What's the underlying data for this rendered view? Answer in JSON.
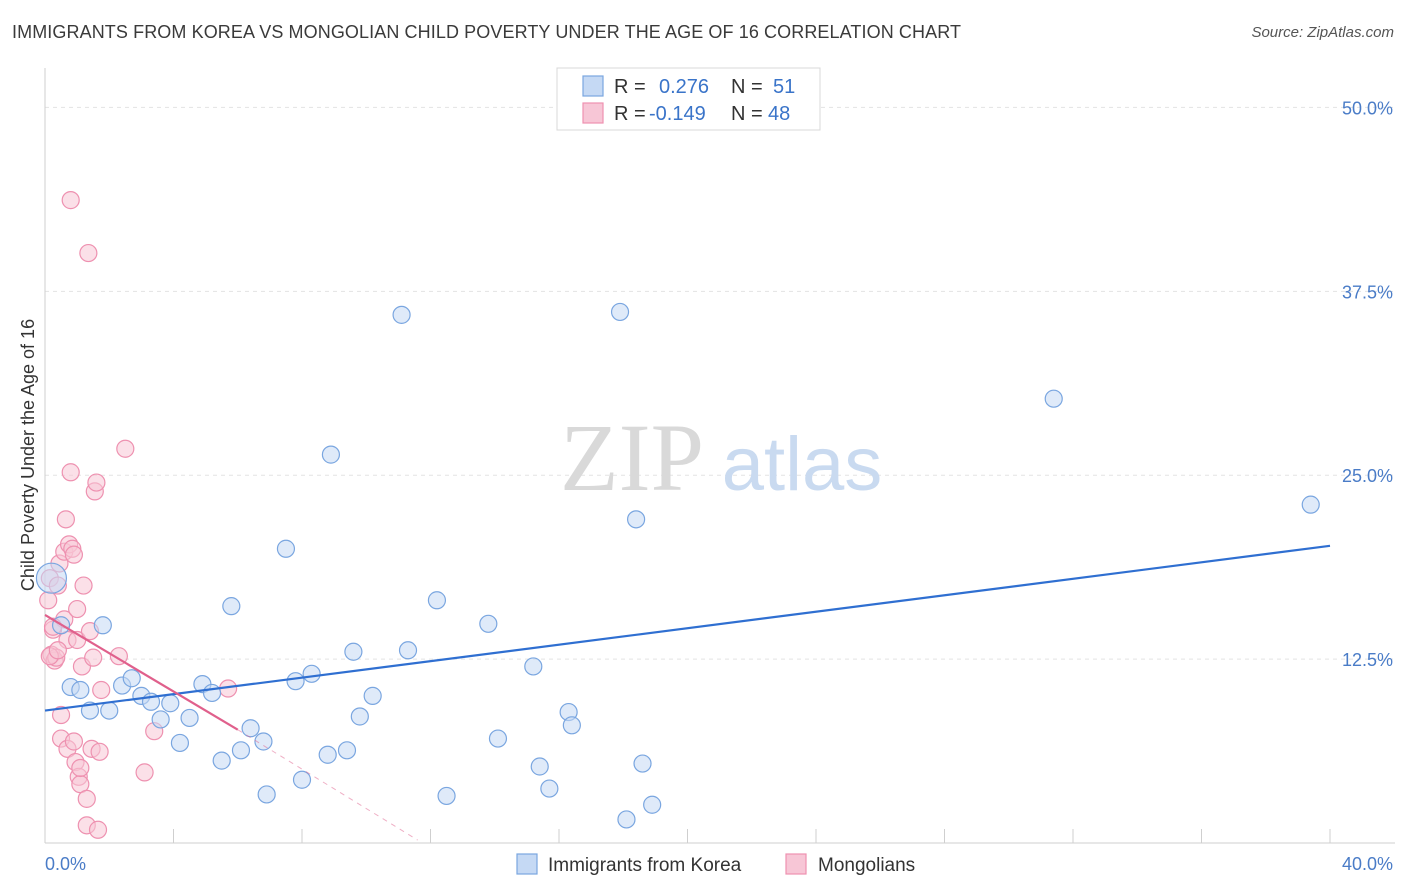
{
  "title": "IMMIGRANTS FROM KOREA VS MONGOLIAN CHILD POVERTY UNDER THE AGE OF 16 CORRELATION CHART",
  "source": "Source: ZipAtlas.com",
  "watermark": {
    "zip": "ZIP",
    "atlas": "atlas"
  },
  "chart_data": {
    "type": "scatter",
    "title": "IMMIGRANTS FROM KOREA VS MONGOLIAN CHILD POVERTY UNDER THE AGE OF 16 CORRELATION CHART",
    "xlabel": "",
    "ylabel": "Child Poverty Under the Age of 16",
    "xlim": [
      0,
      40
    ],
    "ylim": [
      0,
      52
    ],
    "x_tick_labels": {
      "min": "0.0%",
      "max": "40.0%"
    },
    "y_ticks": [
      {
        "value": 12.5,
        "label": "12.5%"
      },
      {
        "value": 25.0,
        "label": "25.0%"
      },
      {
        "value": 37.5,
        "label": "37.5%"
      },
      {
        "value": 50.0,
        "label": "50.0%"
      }
    ],
    "legend": [
      {
        "r_label": "R =",
        "r_value": "0.276",
        "n_label": "N =",
        "n_value": "51"
      },
      {
        "r_label": "R =",
        "r_value": "-0.149",
        "n_label": "N =",
        "n_value": "48"
      }
    ],
    "series": [
      {
        "name": "Immigrants from Korea",
        "color": "#7aa6e0",
        "fill": "#c5d9f4",
        "line_color": "#2f6fd1",
        "trend": {
          "x0": 0.0,
          "y0": 9.0,
          "x1": 40.0,
          "y1": 20.2
        },
        "points": [
          [
            0.2,
            18.0
          ],
          [
            0.5,
            14.8
          ],
          [
            0.8,
            10.6
          ],
          [
            1.1,
            10.4
          ],
          [
            1.4,
            9.0
          ],
          [
            1.8,
            14.8
          ],
          [
            2.0,
            9.0
          ],
          [
            2.4,
            10.7
          ],
          [
            2.7,
            11.2
          ],
          [
            3.0,
            10.0
          ],
          [
            3.3,
            9.6
          ],
          [
            3.6,
            8.4
          ],
          [
            3.9,
            9.5
          ],
          [
            4.2,
            6.8
          ],
          [
            4.5,
            8.5
          ],
          [
            4.9,
            10.8
          ],
          [
            5.2,
            10.2
          ],
          [
            5.5,
            5.6
          ],
          [
            5.8,
            16.1
          ],
          [
            6.1,
            6.3
          ],
          [
            6.4,
            7.8
          ],
          [
            6.8,
            6.9
          ],
          [
            6.9,
            3.3
          ],
          [
            7.5,
            20.0
          ],
          [
            7.8,
            11.0
          ],
          [
            8.0,
            4.3
          ],
          [
            8.3,
            11.5
          ],
          [
            8.8,
            6.0
          ],
          [
            8.9,
            26.4
          ],
          [
            9.4,
            6.3
          ],
          [
            9.6,
            13.0
          ],
          [
            9.8,
            8.6
          ],
          [
            10.2,
            10.0
          ],
          [
            11.1,
            35.9
          ],
          [
            11.3,
            13.1
          ],
          [
            12.2,
            16.5
          ],
          [
            12.5,
            3.2
          ],
          [
            13.8,
            14.9
          ],
          [
            14.1,
            7.1
          ],
          [
            15.2,
            12.0
          ],
          [
            15.4,
            5.2
          ],
          [
            15.7,
            3.7
          ],
          [
            16.3,
            8.9
          ],
          [
            16.4,
            8.0
          ],
          [
            17.9,
            36.1
          ],
          [
            18.1,
            1.6
          ],
          [
            18.4,
            22.0
          ],
          [
            18.6,
            5.4
          ],
          [
            18.9,
            2.6
          ],
          [
            31.4,
            30.2
          ],
          [
            39.4,
            23.0
          ]
        ]
      },
      {
        "name": "Mongolians",
        "color": "#ee91b0",
        "fill": "#f7c6d6",
        "line_color": "#e0608c",
        "trend": {
          "x0": 0.0,
          "y0": 15.5,
          "x1": 6.0,
          "y1": 7.7
        },
        "trend_dashed": {
          "x0": 6.0,
          "y0": 7.7,
          "x1": 11.6,
          "y1": 0.2
        },
        "points": [
          [
            0.1,
            16.5
          ],
          [
            0.15,
            18.0
          ],
          [
            0.2,
            12.8
          ],
          [
            0.25,
            14.5
          ],
          [
            0.3,
            12.4
          ],
          [
            0.35,
            12.6
          ],
          [
            0.4,
            17.5
          ],
          [
            0.45,
            19.0
          ],
          [
            0.5,
            8.7
          ],
          [
            0.5,
            7.1
          ],
          [
            0.6,
            19.8
          ],
          [
            0.6,
            15.2
          ],
          [
            0.65,
            22.0
          ],
          [
            0.7,
            6.4
          ],
          [
            0.7,
            13.8
          ],
          [
            0.75,
            20.3
          ],
          [
            0.8,
            25.2
          ],
          [
            0.8,
            43.7
          ],
          [
            0.85,
            20.0
          ],
          [
            0.9,
            19.6
          ],
          [
            0.9,
            6.9
          ],
          [
            0.95,
            5.5
          ],
          [
            1.0,
            13.8
          ],
          [
            1.0,
            15.9
          ],
          [
            1.05,
            4.5
          ],
          [
            1.1,
            4.0
          ],
          [
            1.1,
            5.1
          ],
          [
            1.15,
            12.0
          ],
          [
            1.2,
            17.5
          ],
          [
            1.3,
            3.0
          ],
          [
            1.3,
            1.2
          ],
          [
            1.35,
            40.1
          ],
          [
            1.4,
            14.4
          ],
          [
            1.45,
            6.4
          ],
          [
            1.5,
            12.6
          ],
          [
            1.55,
            23.9
          ],
          [
            1.6,
            24.5
          ],
          [
            1.65,
            0.9
          ],
          [
            1.7,
            6.2
          ],
          [
            1.75,
            10.4
          ],
          [
            2.3,
            12.7
          ],
          [
            2.5,
            26.8
          ],
          [
            3.1,
            4.8
          ],
          [
            3.4,
            7.6
          ],
          [
            5.7,
            10.5
          ],
          [
            0.15,
            12.7
          ],
          [
            0.25,
            14.7
          ],
          [
            0.4,
            13.1
          ]
        ]
      }
    ]
  }
}
